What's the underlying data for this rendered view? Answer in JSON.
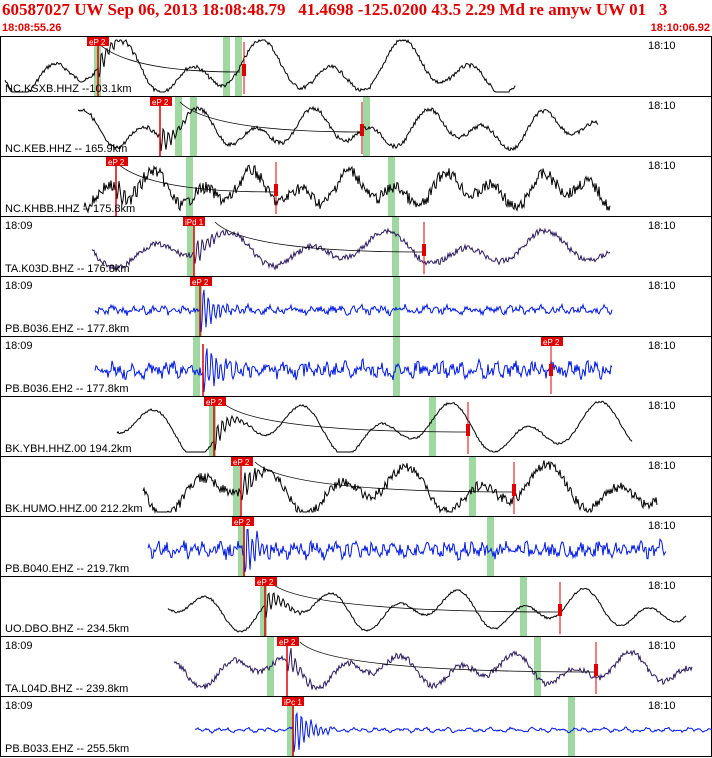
{
  "header": {
    "title": "60587027 UW Sep 06, 2013 18:08:48.79   41.4698 -125.0200 43.5 2.29 Md re amyw UW 01   3",
    "time_start": "18:08:55.26",
    "time_end": "18:10:06.92"
  },
  "colors": {
    "header_text": "#e00000",
    "pick_red": "#e00000",
    "window_green": "#9fd8a0",
    "trace_black": "#000000",
    "trace_purple": "#2a1a5e",
    "trace_blue": "#0018e8"
  },
  "traces": [
    {
      "station": "NC.KSXB.HHZ --103.1km",
      "left_time": "",
      "right_time": "18:10",
      "pick": "eP 2",
      "color": "black",
      "amp": 28,
      "freq": 0.09,
      "noise": 2,
      "start": 5,
      "end": 515,
      "pickx": 97,
      "arrx": 98,
      "greens": [
        97,
        226,
        238
      ],
      "redline": 244,
      "tail": [
        97,
        240
      ]
    },
    {
      "station": "NC.KEB.HHZ -- 165.9km",
      "left_time": "",
      "right_time": "18:10",
      "pick": "eP 2",
      "color": "black",
      "amp": 20,
      "freq": 0.11,
      "noise": 2,
      "start": 78,
      "end": 598,
      "pickx": 160,
      "arrx": 160,
      "greens": [
        178,
        193,
        366
      ],
      "redline": 362,
      "tail": [
        180,
        362
      ]
    },
    {
      "station": "NC.KHBB.HHZ -- 175.8km",
      "left_time": "",
      "right_time": "18:10",
      "pick": "eP 2",
      "color": "black",
      "amp": 18,
      "freq": 0.13,
      "noise": 6,
      "start": 84,
      "end": 610,
      "pickx": 116,
      "arrx": 116,
      "greens": [
        189,
        391
      ],
      "redline": 276,
      "tail": [
        116,
        276
      ]
    },
    {
      "station": "TA.K03D.BHZ -- 176.3km",
      "left_time": "18:09",
      "right_time": "18:10",
      "pick": "iPd 1",
      "color": "purple",
      "amp": 18,
      "freq": 0.08,
      "noise": 3,
      "start": 92,
      "end": 610,
      "pickx": 193,
      "arrx": 194,
      "greens": [
        190,
        395
      ],
      "redline": 424,
      "tail": [
        215,
        424
      ]
    },
    {
      "station": "PB.B036.EHZ -- 177.8km",
      "left_time": "18:09",
      "right_time": "18:10",
      "pick": "eP 2",
      "color": "blue",
      "amp": 3,
      "freq": 0.6,
      "noise": 3,
      "start": 95,
      "end": 612,
      "pickx": 200,
      "arrx": 200,
      "greens": [
        198,
        396
      ],
      "redline": 0,
      "tail": []
    },
    {
      "station": "PB.B036.EH2 -- 177.8km",
      "left_time": "18:09",
      "right_time": "18:10",
      "pick": "eP 2",
      "color": "blue",
      "amp": 5,
      "freq": 0.7,
      "noise": 6,
      "start": 95,
      "end": 612,
      "pickx": 551,
      "arrx": 203,
      "greens": [
        196,
        396
      ],
      "redline": 551,
      "tail": []
    },
    {
      "station": "BK.YBH.HHZ.00 194.2km",
      "left_time": "",
      "right_time": "18:10",
      "pick": "eP 2",
      "color": "black",
      "amp": 26,
      "freq": 0.085,
      "noise": 1,
      "start": 117,
      "end": 632,
      "pickx": 214,
      "arrx": 214,
      "greens": [
        212,
        432
      ],
      "redline": 468,
      "tail": [
        222,
        468
      ]
    },
    {
      "station": "BK.HUMO.HHZ.00 212.2km",
      "left_time": "",
      "right_time": "18:10",
      "pick": "eP 2",
      "color": "black",
      "amp": 24,
      "freq": 0.09,
      "noise": 5,
      "start": 143,
      "end": 657,
      "pickx": 241,
      "arrx": 241,
      "greens": [
        236,
        472
      ],
      "redline": 514,
      "tail": [
        255,
        514
      ]
    },
    {
      "station": "PB.B040.EHZ -- 219.7km",
      "left_time": "",
      "right_time": "18:10",
      "pick": "eP 2",
      "color": "blue",
      "amp": 5,
      "freq": 0.7,
      "noise": 6,
      "start": 148,
      "end": 666,
      "pickx": 242,
      "arrx": 244,
      "greens": [
        241,
        490
      ],
      "redline": 0,
      "tail": []
    },
    {
      "station": "UO.DBO.BHZ -- 234.5km",
      "left_time": "",
      "right_time": "18:10",
      "pick": "eP 2",
      "color": "black",
      "amp": 20,
      "freq": 0.1,
      "noise": 1,
      "start": 168,
      "end": 686,
      "pickx": 265,
      "arrx": 265,
      "greens": [
        263,
        523
      ],
      "redline": 560,
      "tail": [
        270,
        560
      ]
    },
    {
      "station": "TA.L04D.BHZ -- 239.8km",
      "left_time": "18:09",
      "right_time": "18:10",
      "pick": "eP 2",
      "color": "purple",
      "amp": 16,
      "freq": 0.11,
      "noise": 3,
      "start": 174,
      "end": 692,
      "pickx": 287,
      "arrx": 287,
      "greens": [
        270,
        537
      ],
      "redline": 596,
      "tail": [
        300,
        596
      ]
    },
    {
      "station": "PB.B033.EHZ -- 255.5km",
      "left_time": "18:09",
      "right_time": "18:10",
      "pick": "iPc 1",
      "color": "blue",
      "amp": 2,
      "freq": 0.6,
      "noise": 1,
      "start": 195,
      "end": 712,
      "pickx": 292,
      "arrx": 293,
      "greens": [
        290,
        571
      ],
      "redline": 0,
      "tail": []
    }
  ]
}
